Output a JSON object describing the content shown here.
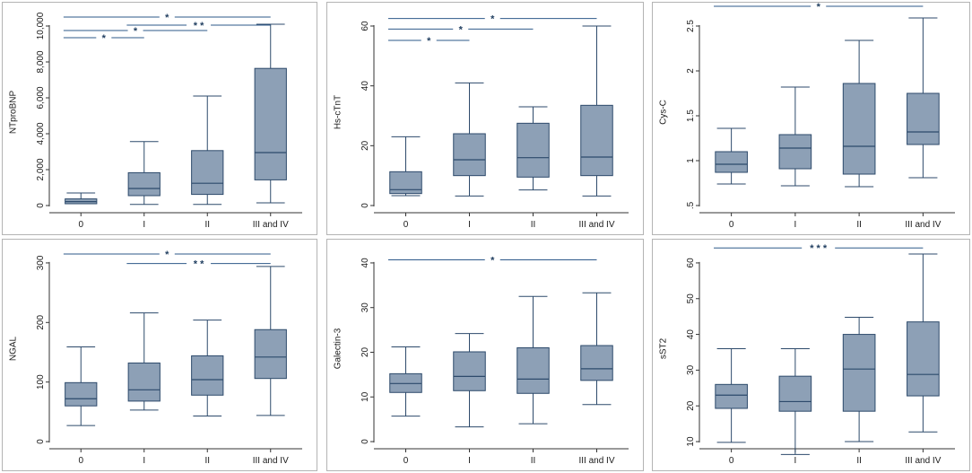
{
  "colors": {
    "box_fill": "#8da0b6",
    "stroke": "#2d4a6b",
    "axis": "#333333",
    "sig_line": "#2e5a8a"
  },
  "chart_data": [
    {
      "type": "box",
      "ylabel": "NTproBNP",
      "categories": [
        "0",
        "I",
        "II",
        "III and IV"
      ],
      "ylim": [
        0,
        10000
      ],
      "yticks": [
        0,
        2000,
        4000,
        6000,
        8000,
        10000
      ],
      "ytick_labels": [
        "0",
        "2,000",
        "4,000",
        "6,000",
        "8,000",
        "10,000"
      ],
      "boxes": [
        {
          "min": 100,
          "q1": 100,
          "median": 220,
          "q3": 370,
          "max": 700
        },
        {
          "min": 60,
          "q1": 550,
          "median": 950,
          "q3": 1830,
          "max": 3560
        },
        {
          "min": 60,
          "q1": 620,
          "median": 1240,
          "q3": 3060,
          "max": 6100
        },
        {
          "min": 150,
          "q1": 1430,
          "median": 2950,
          "q3": 7640,
          "max": 10100
        }
      ],
      "significance": [
        {
          "from": 0,
          "to": 3,
          "label": "*",
          "level": 10500
        },
        {
          "from": 1,
          "to": 3,
          "label": "* *",
          "level": 10050
        },
        {
          "from": 0,
          "to": 2,
          "label": "*",
          "level": 9750
        },
        {
          "from": 0,
          "to": 1,
          "label": "*",
          "level": 9350
        }
      ]
    },
    {
      "type": "box",
      "ylabel": "Hs-cTnT",
      "categories": [
        "0",
        "I",
        "II",
        "III and IV"
      ],
      "ylim": [
        0,
        60
      ],
      "yticks": [
        0,
        20,
        40,
        60
      ],
      "ytick_labels": [
        "0",
        "20",
        "40",
        "60"
      ],
      "boxes": [
        {
          "min": 3.3,
          "q1": 4,
          "median": 5.3,
          "q3": 11.3,
          "max": 23
        },
        {
          "min": 3.2,
          "q1": 10,
          "median": 15.3,
          "q3": 24,
          "max": 41
        },
        {
          "min": 5.2,
          "q1": 9.5,
          "median": 16,
          "q3": 27.5,
          "max": 33
        },
        {
          "min": 3.2,
          "q1": 10,
          "median": 16.2,
          "q3": 33.5,
          "max": 60
        }
      ],
      "significance": [
        {
          "from": 0,
          "to": 3,
          "label": "*",
          "level": 62.5
        },
        {
          "from": 0,
          "to": 2,
          "label": "*",
          "level": 59
        },
        {
          "from": 0,
          "to": 1,
          "label": "*",
          "level": 55.2
        }
      ]
    },
    {
      "type": "box",
      "ylabel": "Cys-C",
      "categories": [
        "0",
        "I",
        "II",
        "III and IV"
      ],
      "ylim": [
        0.5,
        2.5
      ],
      "yticks": [
        0.5,
        1,
        1.5,
        2,
        2.5
      ],
      "ytick_labels": [
        ".5",
        "1",
        "1.5",
        "2",
        "2.5"
      ],
      "boxes": [
        {
          "min": 0.74,
          "q1": 0.87,
          "median": 0.96,
          "q3": 1.1,
          "max": 1.36
        },
        {
          "min": 0.72,
          "q1": 0.91,
          "median": 1.14,
          "q3": 1.29,
          "max": 1.82
        },
        {
          "min": 0.71,
          "q1": 0.85,
          "median": 1.16,
          "q3": 1.86,
          "max": 2.34
        },
        {
          "min": 0.81,
          "q1": 1.18,
          "median": 1.32,
          "q3": 1.75,
          "max": 2.59
        }
      ],
      "significance": [
        {
          "from": 0,
          "to": 3,
          "label": "*",
          "level": 2.72
        }
      ]
    },
    {
      "type": "box",
      "ylabel": "NGAL",
      "categories": [
        "0",
        "I",
        "II",
        "III and IV"
      ],
      "ylim": [
        0,
        300
      ],
      "yticks": [
        0,
        100,
        200,
        300
      ],
      "ytick_labels": [
        "0",
        "100",
        "200",
        "300"
      ],
      "boxes": [
        {
          "min": 27,
          "q1": 60,
          "median": 72,
          "q3": 99,
          "max": 159
        },
        {
          "min": 53,
          "q1": 68,
          "median": 87,
          "q3": 132,
          "max": 216
        },
        {
          "min": 43,
          "q1": 78,
          "median": 104,
          "q3": 144,
          "max": 204
        },
        {
          "min": 44,
          "q1": 106,
          "median": 142,
          "q3": 188,
          "max": 294
        }
      ],
      "significance": [
        {
          "from": 0,
          "to": 3,
          "label": "*",
          "level": 315
        },
        {
          "from": 1,
          "to": 3,
          "label": "* *",
          "level": 299
        }
      ]
    },
    {
      "type": "box",
      "ylabel": "Galectin-3",
      "categories": [
        "0",
        "I",
        "II",
        "III and IV"
      ],
      "ylim": [
        0,
        40
      ],
      "yticks": [
        0,
        10,
        20,
        30,
        40
      ],
      "ytick_labels": [
        "0",
        "10",
        "20",
        "30",
        "40"
      ],
      "boxes": [
        {
          "min": 5.7,
          "q1": 11,
          "median": 13,
          "q3": 15.2,
          "max": 21.2
        },
        {
          "min": 3.3,
          "q1": 11.4,
          "median": 14.6,
          "q3": 20.1,
          "max": 24.2
        },
        {
          "min": 4,
          "q1": 10.8,
          "median": 14,
          "q3": 21,
          "max": 32.5
        },
        {
          "min": 8.3,
          "q1": 13.7,
          "median": 16.3,
          "q3": 21.5,
          "max": 33.3
        }
      ],
      "significance": [
        {
          "from": 0,
          "to": 3,
          "label": "*",
          "level": 40.7
        }
      ]
    },
    {
      "type": "box",
      "ylabel": "sST2",
      "categories": [
        "0",
        "I",
        "II",
        "III and IV"
      ],
      "ylim": [
        10,
        60
      ],
      "yticks": [
        10,
        20,
        30,
        40,
        50,
        60
      ],
      "ytick_labels": [
        "10",
        "20",
        "30",
        "40",
        "50",
        "60"
      ],
      "boxes": [
        {
          "min": 9.8,
          "q1": 19.3,
          "median": 23,
          "q3": 26,
          "max": 36
        },
        {
          "min": 6.4,
          "q1": 18.5,
          "median": 21.2,
          "q3": 28.3,
          "max": 36
        },
        {
          "min": 10,
          "q1": 18.5,
          "median": 30.3,
          "q3": 40,
          "max": 44.8
        },
        {
          "min": 12.7,
          "q1": 22.8,
          "median": 28.8,
          "q3": 43.5,
          "max": 62.5
        }
      ],
      "significance": [
        {
          "from": 0,
          "to": 3,
          "label": "* * *",
          "level": 64.2
        }
      ]
    }
  ]
}
